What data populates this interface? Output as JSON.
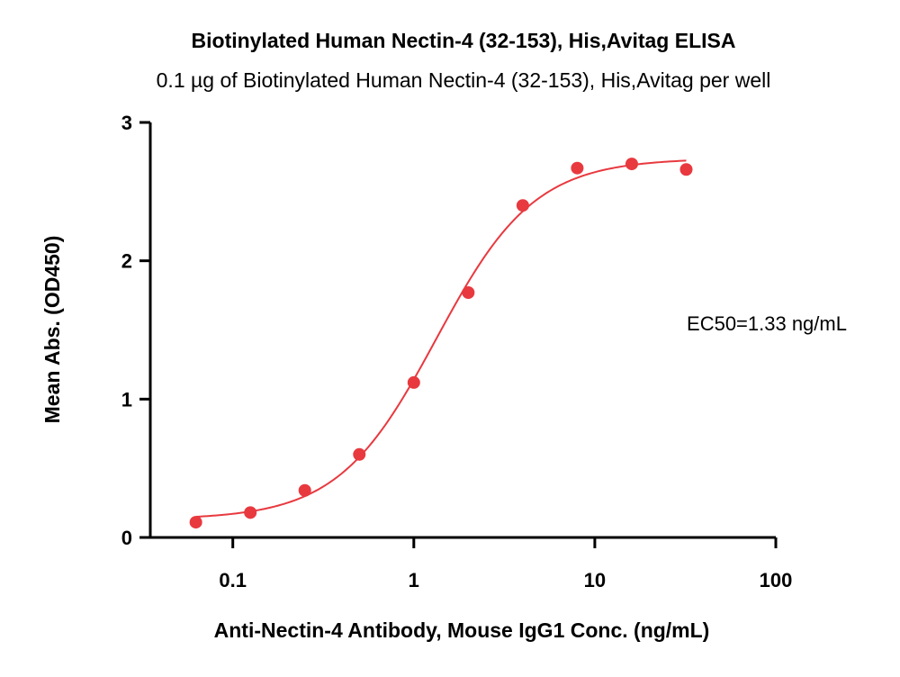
{
  "chart_data": {
    "type": "scatter",
    "title": "Biotinylated Human Nectin-4 (32-153), His,Avitag ELISA",
    "subtitle": "0.1 µg of Biotinylated Human Nectin-4 (32-153), His,Avitag per well",
    "xlabel": "Anti-Nectin-4 Antibody, Mouse IgG1 Conc. (ng/mL)",
    "ylabel": "Mean Abs. (OD450)",
    "x_scale": "log",
    "xlim": [
      0.035,
      100
    ],
    "ylim": [
      0,
      3
    ],
    "x_ticks": [
      0.1,
      1,
      10,
      100
    ],
    "x_tick_labels": [
      "0.1",
      "1",
      "10",
      "100"
    ],
    "y_ticks": [
      0,
      1,
      2,
      3
    ],
    "y_tick_labels": [
      "0",
      "1",
      "2",
      "3"
    ],
    "grid": false,
    "series": [
      {
        "x": [
          0.0625,
          0.125,
          0.25,
          0.5,
          1,
          2,
          4,
          8,
          16,
          32
        ],
        "y": [
          0.11,
          0.18,
          0.34,
          0.6,
          1.12,
          1.77,
          2.4,
          2.67,
          2.7,
          2.66
        ],
        "color": "#e8393f"
      }
    ],
    "fit": {
      "bottom": 0.13,
      "top": 2.74,
      "ec50": 1.33,
      "hill": 1.6,
      "color": "#e8393f"
    },
    "annotation": "EC50=1.33 ng/mL"
  }
}
